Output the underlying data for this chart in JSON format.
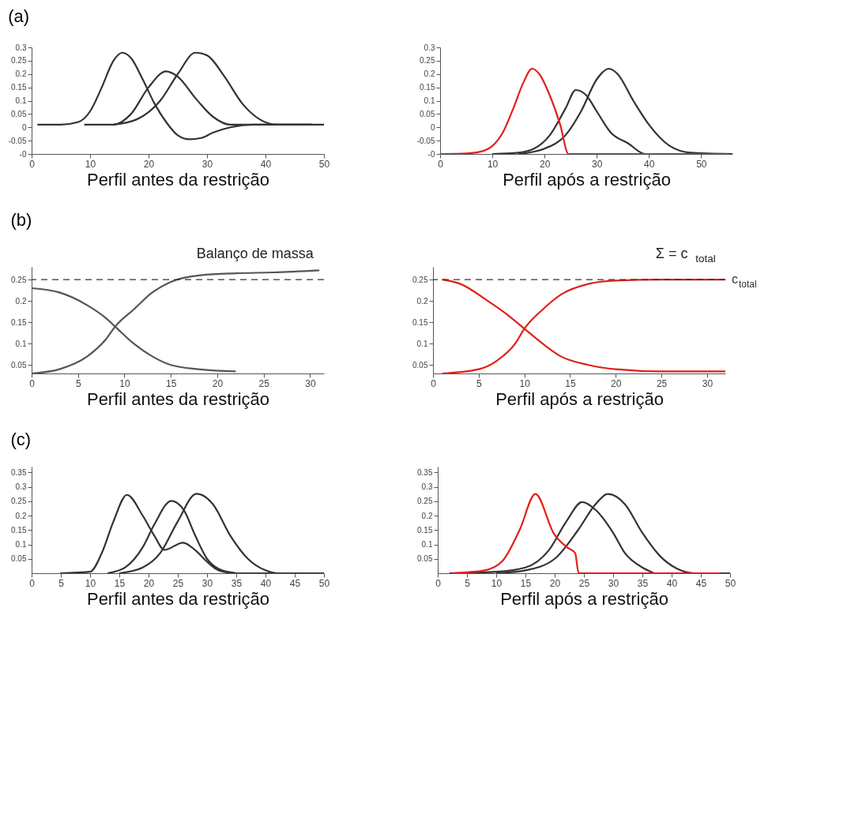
{
  "chart_data": [
    {
      "type": "line",
      "title": "(a)",
      "xlabel": "Perfil antes da restrição",
      "xlim": [
        0,
        50
      ],
      "xticks": [
        0,
        10,
        20,
        30,
        40,
        50
      ],
      "ylim": [
        -0.1,
        0.3
      ],
      "yticks": [
        {
          "value": -0.1,
          "label": "-0"
        },
        -0.05,
        0,
        0.05,
        0.1,
        0.15,
        0.2,
        0.25,
        0.3
      ],
      "series": [
        {
          "color": "#333333",
          "x": [
            1,
            5,
            8,
            10,
            12,
            14,
            15.5,
            17,
            19,
            21,
            23,
            25,
            27,
            29,
            31,
            34,
            38,
            48
          ],
          "values": [
            0.01,
            0.01,
            0.02,
            0.06,
            0.15,
            0.25,
            0.28,
            0.26,
            0.18,
            0.09,
            0.02,
            -0.03,
            -0.045,
            -0.04,
            -0.02,
            0.0,
            0.01,
            0.01
          ]
        },
        {
          "color": "#333333",
          "x": [
            9,
            14,
            17,
            20,
            23,
            25,
            28,
            31,
            34,
            40,
            48
          ],
          "values": [
            0.01,
            0.01,
            0.05,
            0.15,
            0.21,
            0.19,
            0.11,
            0.04,
            0.01,
            0.01,
            0.01
          ]
        },
        {
          "color": "#333333",
          "x": [
            14,
            18,
            22,
            25,
            28,
            30,
            33,
            36,
            39,
            42,
            50
          ],
          "values": [
            0.01,
            0.03,
            0.1,
            0.2,
            0.28,
            0.27,
            0.19,
            0.09,
            0.03,
            0.01,
            0.01
          ]
        }
      ]
    },
    {
      "type": "line",
      "xlabel": "Perfil após a restrição",
      "xlim": [
        0,
        56
      ],
      "xticks": [
        0,
        10,
        20,
        30,
        40,
        50
      ],
      "ylim": [
        -0.1,
        0.3
      ],
      "yticks": [
        {
          "value": -0.1,
          "label": "-0"
        },
        -0.05,
        0,
        0.05,
        0.1,
        0.15,
        0.2,
        0.25,
        0.3
      ],
      "series": [
        {
          "color": "#333333",
          "x": [
            10,
            15,
            18,
            21,
            24,
            26,
            28,
            30,
            32.7,
            36,
            39.3,
            45
          ],
          "values": [
            -0.1,
            -0.095,
            -0.08,
            -0.03,
            0.07,
            0.14,
            0.12,
            0.06,
            -0.02,
            -0.06,
            -0.1,
            -0.1
          ]
        },
        {
          "color": "#333333",
          "x": [
            15,
            20,
            24,
            27,
            30,
            32.3,
            34,
            37,
            40,
            44,
            48,
            56
          ],
          "values": [
            -0.1,
            -0.08,
            -0.03,
            0.06,
            0.18,
            0.22,
            0.2,
            0.1,
            0.01,
            -0.07,
            -0.095,
            -0.1
          ]
        },
        {
          "color": "#e0201a",
          "x": [
            0,
            5,
            8,
            10,
            12,
            14,
            16,
            17.6,
            19,
            21,
            23,
            24.6,
            55
          ],
          "values": [
            -0.1,
            -0.098,
            -0.09,
            -0.07,
            -0.02,
            0.07,
            0.17,
            0.22,
            0.2,
            0.12,
            0.01,
            -0.1,
            -0.1
          ]
        }
      ]
    },
    {
      "type": "line",
      "title": "(b)",
      "xlabel": "Perfil antes da restrição",
      "annotations": [
        "Balanço de massa"
      ],
      "xlim": [
        0,
        31.5
      ],
      "xticks": [
        0,
        5,
        10,
        15,
        20,
        25,
        30
      ],
      "ylim": [
        0.03,
        0.28
      ],
      "yticks": [
        0.05,
        0.1,
        0.15,
        0.2,
        0.25
      ],
      "ref_lines": [
        {
          "axis": "y",
          "value": 0.25,
          "line_style": "dashed"
        }
      ],
      "series": [
        {
          "color": "#555555",
          "x": [
            0,
            3,
            6,
            8,
            9,
            11,
            13,
            15,
            18,
            22
          ],
          "values": [
            0.23,
            0.22,
            0.19,
            0.16,
            0.14,
            0.1,
            0.07,
            0.05,
            0.04,
            0.035
          ]
        },
        {
          "color": "#555555",
          "x": [
            0,
            3,
            6,
            8,
            9,
            11,
            13,
            15,
            18,
            22,
            26,
            31
          ],
          "values": [
            0.03,
            0.04,
            0.07,
            0.11,
            0.14,
            0.18,
            0.22,
            0.245,
            0.26,
            0.265,
            0.267,
            0.272
          ]
        }
      ]
    },
    {
      "type": "line",
      "xlabel": "Perfil após a restrição",
      "annotations": [
        "Σ = c$_{total}$"
      ],
      "xlim": [
        0,
        32
      ],
      "xticks": [
        0,
        5,
        10,
        15,
        20,
        25,
        30
      ],
      "ylim": [
        0.03,
        0.28
      ],
      "yticks": [
        0.05,
        0.1,
        0.15,
        0.2,
        0.25
      ],
      "ref_lines": [
        {
          "axis": "y",
          "value": 0.25,
          "line_style": "dashed",
          "label": "c$_{total}$"
        }
      ],
      "series": [
        {
          "color": "#e0201a",
          "x": [
            1,
            3,
            6,
            8,
            10,
            12,
            14,
            17,
            20,
            25,
            32
          ],
          "values": [
            0.25,
            0.24,
            0.2,
            0.17,
            0.135,
            0.1,
            0.07,
            0.05,
            0.04,
            0.035,
            0.035
          ]
        },
        {
          "color": "#e0201a",
          "x": [
            1,
            5,
            7,
            9,
            10,
            12,
            14,
            17,
            20,
            25,
            32
          ],
          "values": [
            0.03,
            0.04,
            0.06,
            0.1,
            0.135,
            0.18,
            0.215,
            0.24,
            0.248,
            0.25,
            0.25
          ]
        }
      ]
    },
    {
      "type": "line",
      "title": "(c)",
      "xlabel": "Perfil antes da restrição",
      "xlim": [
        0,
        50
      ],
      "xticks": [
        0,
        5,
        10,
        15,
        20,
        25,
        30,
        35,
        40,
        45,
        50
      ],
      "ylim": [
        0,
        0.37
      ],
      "yticks": [
        0.05,
        0.1,
        0.15,
        0.2,
        0.25,
        0.3,
        0.35
      ],
      "series": [
        {
          "color": "#333333",
          "x": [
            4.9,
            10,
            12,
            14,
            16.3,
            19,
            21,
            22.7,
            25.9,
            28,
            30,
            32,
            35,
            50
          ],
          "values": [
            0,
            0.005,
            0.07,
            0.18,
            0.272,
            0.2,
            0.13,
            0.081,
            0.106,
            0.08,
            0.04,
            0.01,
            0,
            0
          ]
        },
        {
          "color": "#333333",
          "x": [
            13,
            16,
            19,
            21,
            23.9,
            26,
            28,
            30,
            32,
            35
          ],
          "values": [
            0,
            0.02,
            0.09,
            0.17,
            0.251,
            0.22,
            0.13,
            0.05,
            0.015,
            0
          ]
        },
        {
          "color": "#333333",
          "x": [
            15,
            19,
            22,
            25,
            28.2,
            31,
            34,
            37,
            40,
            42,
            48.6
          ],
          "values": [
            0,
            0.02,
            0.07,
            0.18,
            0.276,
            0.24,
            0.13,
            0.05,
            0.01,
            0,
            0
          ]
        }
      ]
    },
    {
      "type": "line",
      "xlabel": "Perfil após a restrição",
      "xlim": [
        0,
        50
      ],
      "xticks": [
        0,
        5,
        10,
        15,
        20,
        25,
        30,
        35,
        40,
        45,
        50
      ],
      "ylim": [
        0,
        0.37
      ],
      "yticks": [
        0.05,
        0.1,
        0.15,
        0.2,
        0.25,
        0.3,
        0.35
      ],
      "series": [
        {
          "color": "#333333",
          "x": [
            2,
            10,
            15,
            19,
            22,
            24.7,
            27,
            30,
            32,
            35,
            37
          ],
          "values": [
            0,
            0.005,
            0.02,
            0.08,
            0.18,
            0.247,
            0.22,
            0.14,
            0.07,
            0.02,
            0
          ]
        },
        {
          "color": "#333333",
          "x": [
            10,
            15,
            20,
            24,
            27,
            29.1,
            32,
            35,
            38,
            41,
            44,
            50
          ],
          "values": [
            0,
            0.01,
            0.05,
            0.15,
            0.24,
            0.275,
            0.24,
            0.14,
            0.06,
            0.015,
            0,
            0
          ]
        },
        {
          "color": "#e0201a",
          "x": [
            2.4,
            8,
            11,
            14,
            16.7,
            19.9,
            22.1,
            23.5,
            24.1,
            48.4
          ],
          "values": [
            0,
            0.01,
            0.041,
            0.15,
            0.275,
            0.136,
            0.09,
            0.07,
            0,
            0
          ]
        }
      ]
    }
  ]
}
